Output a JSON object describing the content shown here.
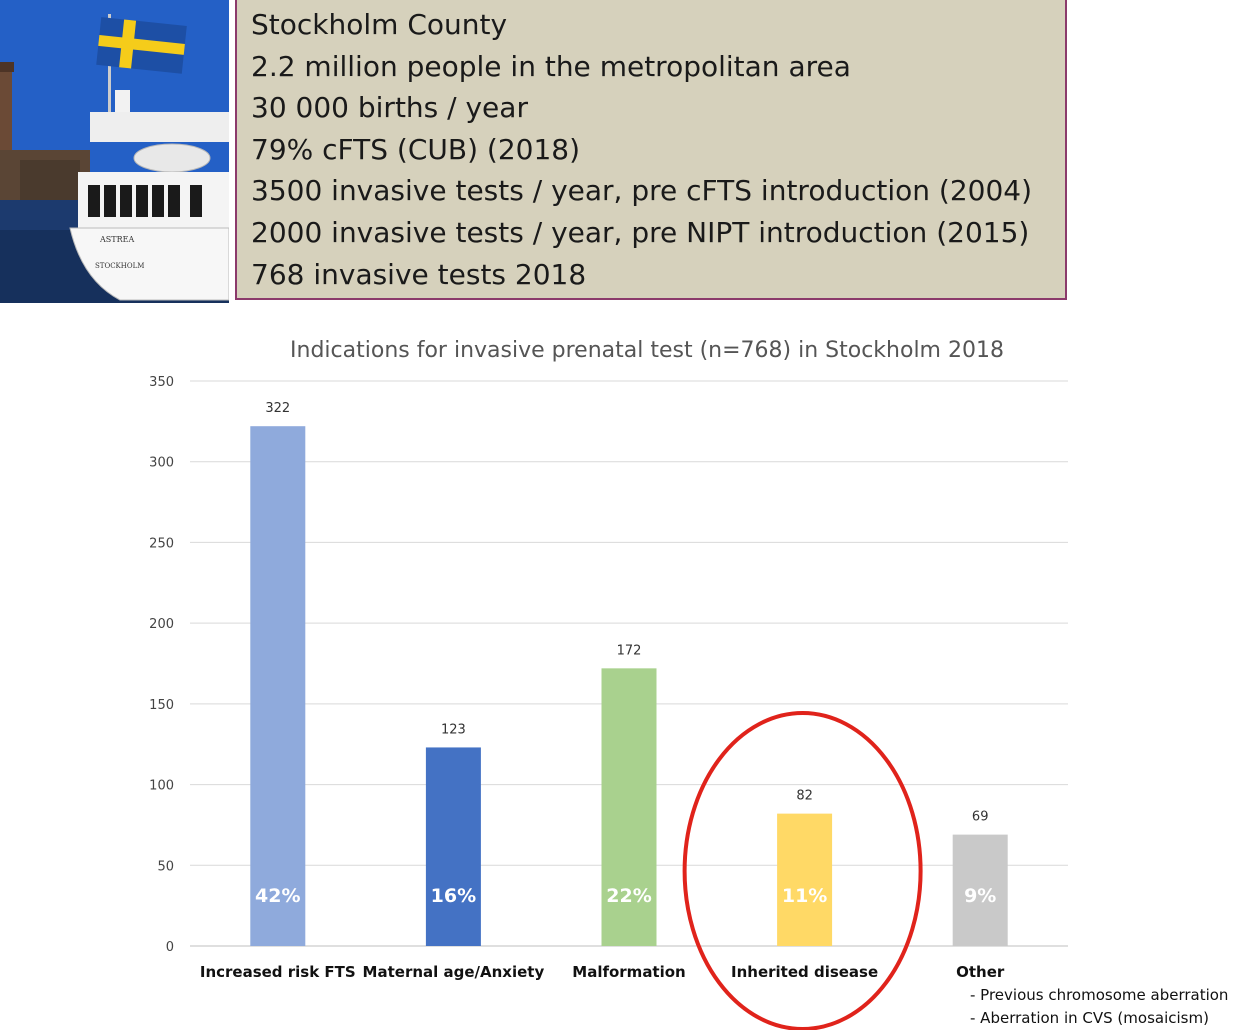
{
  "info": {
    "lines": [
      "Stockholm County",
      "2.2 million people in the metropolitan area",
      "30 000 births / year",
      "79% cFTS (CUB) (2018)",
      "3500 invasive tests / year, pre cFTS introduction (2004)",
      "2000 invasive tests / year, pre NIPT introduction (2015)",
      "768 invasive tests 2018"
    ]
  },
  "photo": {
    "hull_name": "ASTREA",
    "hull_port": "STOCKHOLM"
  },
  "chart_data": {
    "type": "bar",
    "title": "Indications for invasive prenatal test (n=768) in Stockholm 2018",
    "categories": [
      "Increased risk FTS",
      "Maternal age/Anxiety",
      "Malformation",
      "Inherited disease",
      "Other"
    ],
    "values": [
      322,
      123,
      172,
      82,
      69
    ],
    "percent_labels": [
      "42%",
      "16%",
      "22%",
      "11%",
      "9%"
    ],
    "colors": [
      "#8faadc",
      "#4472c4",
      "#a9d18e",
      "#ffd966",
      "#c9c9c9"
    ],
    "ylim": [
      0,
      350
    ],
    "yticks": [
      0,
      50,
      100,
      150,
      200,
      250,
      300,
      350
    ],
    "grid": true,
    "highlighted_category": "Inherited disease",
    "highlight_color": "#e0231b",
    "other_notes": [
      "- Previous chromosome aberration",
      "- Aberration in CVS (mosaicism)"
    ]
  }
}
